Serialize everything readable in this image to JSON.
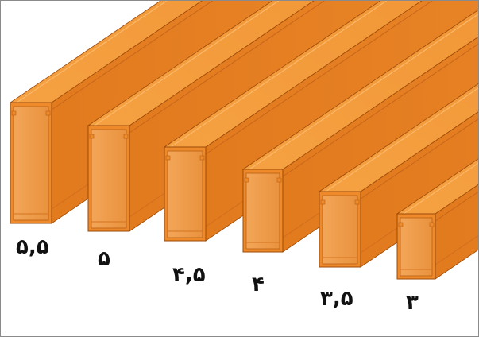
{
  "colors": {
    "duct_face": "#ee8a2a",
    "duct_top": "#f39a3a",
    "duct_side": "#e57c20",
    "duct_inner": "#f0a050",
    "duct_edge": "#9a4a08",
    "label": "#111111"
  },
  "ducts": [
    {
      "label": "۵,۵"
    },
    {
      "label": "۵"
    },
    {
      "label": "۴,۵"
    },
    {
      "label": "۴"
    },
    {
      "label": "۳,۵"
    },
    {
      "label": "۳"
    }
  ]
}
